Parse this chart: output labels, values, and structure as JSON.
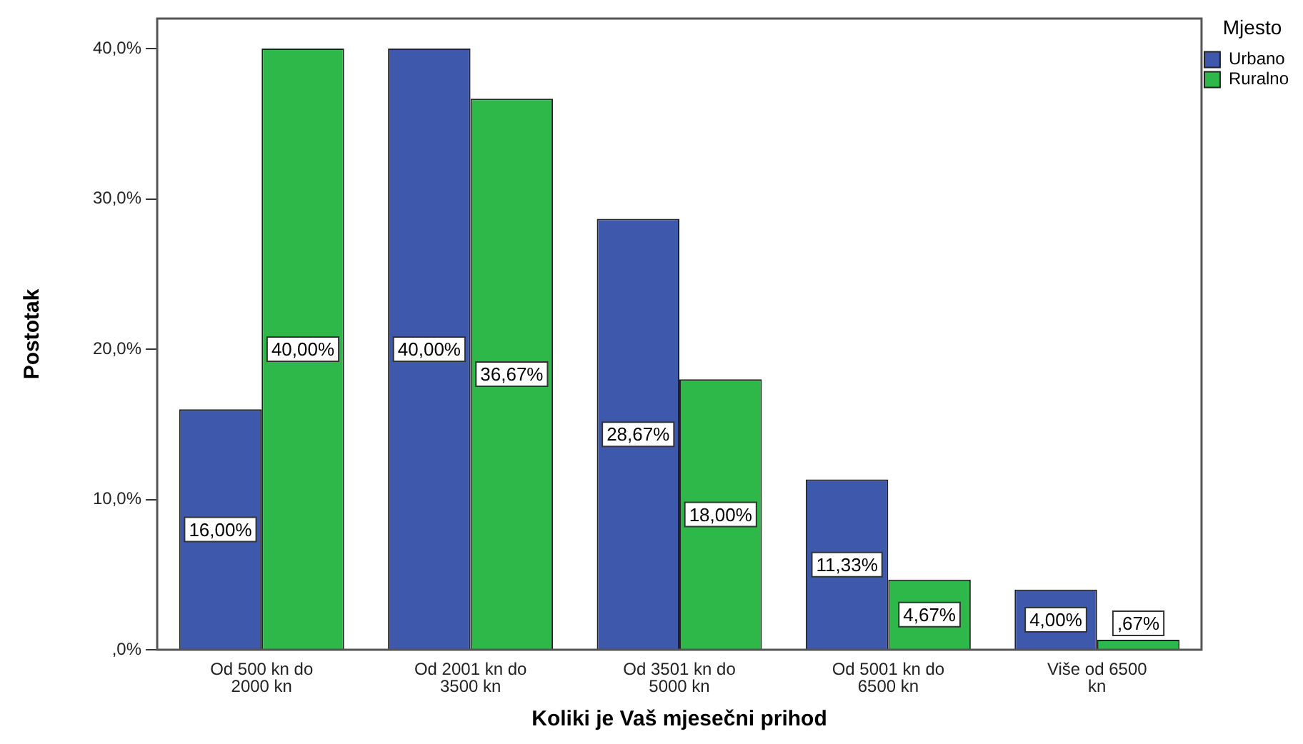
{
  "chart_data": {
    "type": "bar",
    "xlabel": "Koliki je Vaš mjesečni prihod",
    "ylabel": "Postotak",
    "legend_title": "Mjesto",
    "legend": "top right",
    "grid": false,
    "categories": [
      "Od 500 kn do 2000 kn",
      "Od 2001 kn do 3500 kn",
      "Od 3501 kn do 5000 kn",
      "Od 5001 kn do 6500 kn",
      "Više od 6500 kn"
    ],
    "series": [
      {
        "name": "Urbano",
        "color": "#3e58ac",
        "values": [
          16.0,
          40.0,
          28.67,
          11.33,
          4.0
        ],
        "value_labels": [
          "16,00%",
          "40,00%",
          "28,67%",
          "11,33%",
          "4,00%"
        ]
      },
      {
        "name": "Ruralno",
        "color": "#2fb84a",
        "values": [
          40.0,
          36.67,
          18.0,
          4.67,
          0.67
        ],
        "value_labels": [
          "40,00%",
          "36,67%",
          "18,00%",
          "4,67%",
          ",67%"
        ]
      }
    ],
    "ylim": [
      0,
      42
    ],
    "yticks": [
      {
        "value": 0,
        "label": ",0%"
      },
      {
        "value": 10,
        "label": "10,0%"
      },
      {
        "value": 20,
        "label": "20,0%"
      },
      {
        "value": 30,
        "label": "30,0%"
      },
      {
        "value": 40,
        "label": "40,0%"
      }
    ]
  }
}
